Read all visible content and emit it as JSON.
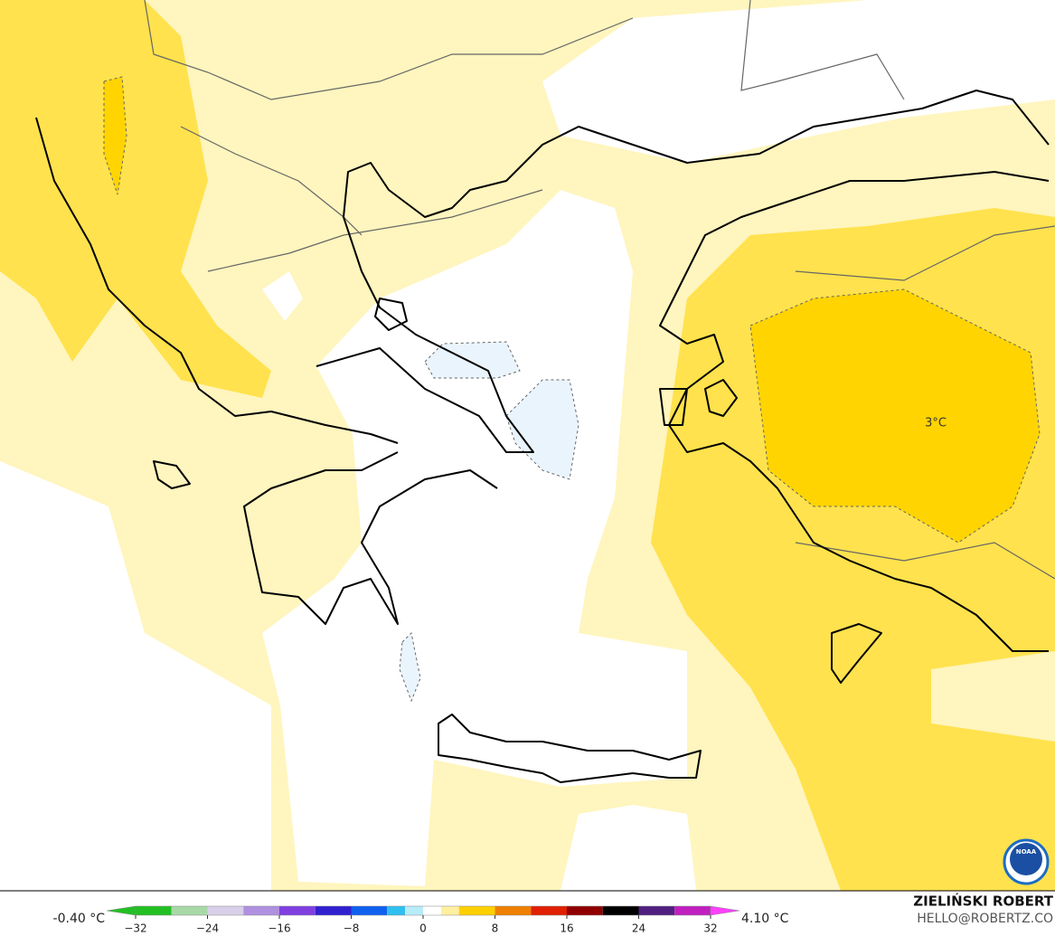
{
  "map": {
    "annotation": "3°C"
  },
  "colorbar": {
    "min_label": "-0.40 °C",
    "max_label": "4.10 °C",
    "range": [
      -32,
      32
    ],
    "ticks": [
      {
        "value": -32,
        "label": "−32"
      },
      {
        "value": -24,
        "label": "−24"
      },
      {
        "value": -16,
        "label": "−16"
      },
      {
        "value": -8,
        "label": "−8"
      },
      0,
      8,
      16,
      24,
      32
    ],
    "stops": [
      {
        "value": -32,
        "color": "#22c022"
      },
      {
        "value": -28,
        "color": "#a8d8a8"
      },
      {
        "value": -24,
        "color": "#d8d0e8"
      },
      {
        "value": -20,
        "color": "#b090e0"
      },
      {
        "value": -16,
        "color": "#8040e0"
      },
      {
        "value": -12,
        "color": "#3020d0"
      },
      {
        "value": -8,
        "color": "#1060f0"
      },
      {
        "value": -4,
        "color": "#30c0f0"
      },
      {
        "value": -2,
        "color": "#b8ecf8"
      },
      {
        "value": 0,
        "color": "#ffffff"
      },
      {
        "value": 2,
        "color": "#fff0a0"
      },
      {
        "value": 4,
        "color": "#ffd000"
      },
      {
        "value": 8,
        "color": "#f08000"
      },
      {
        "value": 12,
        "color": "#e02000"
      },
      {
        "value": 16,
        "color": "#900000"
      },
      {
        "value": 20,
        "color": "#000000"
      },
      {
        "value": 24,
        "color": "#502080"
      },
      {
        "value": 28,
        "color": "#c020c0"
      }
    ],
    "end_color": "#ff40ff"
  },
  "credit": {
    "name": "ZIELIŃSKI ROBERT",
    "contact": "HELLO@ROBERTZ.CO"
  },
  "logo": "NOAA"
}
